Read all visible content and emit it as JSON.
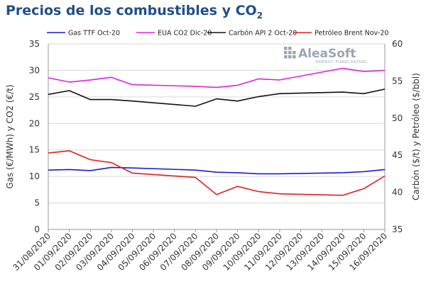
{
  "title": {
    "main": "Precios de los combustibles y CO",
    "subscript": "2"
  },
  "logo": {
    "brand": "AleaSoft",
    "tagline": "ENERGY FORECASTING",
    "color": "#9aa6b2"
  },
  "chart_data": {
    "type": "line",
    "categories": [
      "31/08/2020",
      "01/09/2020",
      "02/09/2020",
      "03/09/2020",
      "04/09/2020",
      "05/09/2020",
      "06/09/2020",
      "07/09/2020",
      "08/09/2020",
      "09/09/2020",
      "10/09/2020",
      "11/09/2020",
      "12/09/2020",
      "13/09/2020",
      "14/09/2020",
      "15/09/2020",
      "16/09/2020"
    ],
    "y_left": {
      "label": "Gas (€/MWh) y CO2 (€/t)",
      "min": 0,
      "max": 35,
      "ticks": [
        0,
        5,
        10,
        15,
        20,
        25,
        30,
        35
      ]
    },
    "y_right": {
      "label": "Carbón ($/t) y Petróleo ($/bbl)",
      "min": 35,
      "max": 60,
      "ticks": [
        35,
        40,
        45,
        50,
        55,
        60
      ]
    },
    "grid": "horizontal",
    "legend_position": "top",
    "series": [
      {
        "name": "Gas TTF Oct-20",
        "axis": "left",
        "color": "#1c1ccc",
        "values": [
          11.2,
          11.3,
          11.1,
          11.7,
          11.6,
          null,
          null,
          11.2,
          10.8,
          10.7,
          10.5,
          10.5,
          null,
          null,
          10.7,
          10.9,
          11.3
        ]
      },
      {
        "name": "EUA CO2 Dic-20",
        "axis": "left",
        "color": "#e020e0",
        "values": [
          28.6,
          27.8,
          28.2,
          28.7,
          27.3,
          null,
          null,
          27.0,
          26.8,
          27.2,
          28.4,
          28.2,
          null,
          null,
          30.4,
          29.8,
          30.0
        ]
      },
      {
        "name": "Carbón API 2 Oct-20",
        "axis": "right",
        "color": "#111111",
        "values": [
          53.2,
          53.7,
          52.5,
          52.5,
          52.3,
          null,
          null,
          51.6,
          52.6,
          52.3,
          52.9,
          53.3,
          null,
          null,
          53.5,
          53.3,
          53.9
        ]
      },
      {
        "name": "Petróleo Brent Nov-20",
        "axis": "right",
        "color": "#e02020",
        "values": [
          45.3,
          45.6,
          44.4,
          44.0,
          42.6,
          null,
          null,
          42.0,
          39.7,
          40.8,
          40.1,
          39.8,
          null,
          null,
          39.6,
          40.5,
          42.2
        ]
      }
    ]
  }
}
